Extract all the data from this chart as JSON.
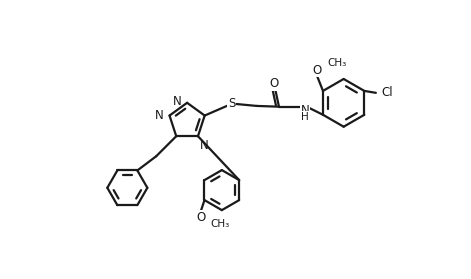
{
  "bg_color": "#ffffff",
  "line_color": "#1a1a1a",
  "line_width": 1.6,
  "font_size": 8.5,
  "figsize": [
    4.71,
    2.79
  ],
  "dpi": 100,
  "xlim": [
    0,
    9.42
  ],
  "ylim": [
    0,
    5.58
  ]
}
